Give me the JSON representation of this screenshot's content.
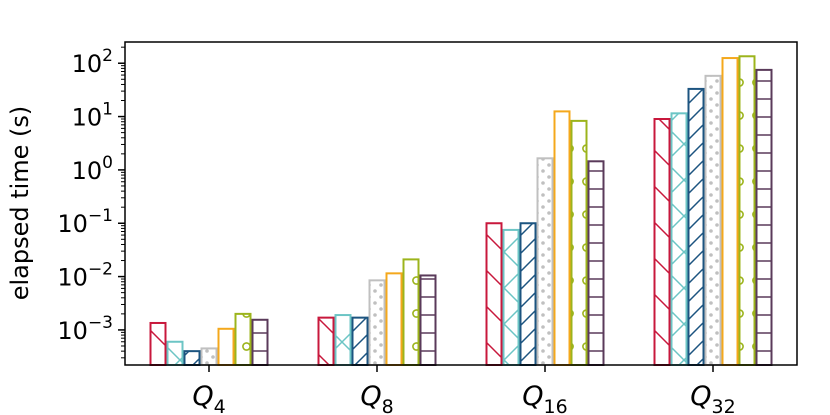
{
  "chart_data": {
    "type": "bar",
    "title": "",
    "xlabel": "",
    "ylabel": "elapsed time (s)",
    "yscale": "log",
    "ylim": [
      0.00022,
      250
    ],
    "yticks": [
      {
        "value": 0.001,
        "base": "10",
        "exp": "−3"
      },
      {
        "value": 0.01,
        "base": "10",
        "exp": "−2"
      },
      {
        "value": 0.1,
        "base": "10",
        "exp": "−1"
      },
      {
        "value": 1,
        "base": "10",
        "exp": "0"
      },
      {
        "value": 10,
        "base": "10",
        "exp": "1"
      },
      {
        "value": 100,
        "base": "10",
        "exp": "2"
      }
    ],
    "categories": [
      {
        "base": "Q",
        "sub": "4"
      },
      {
        "base": "Q",
        "sub": "8"
      },
      {
        "base": "Q",
        "sub": "16"
      },
      {
        "base": "Q",
        "sub": "32"
      }
    ],
    "grid": false,
    "legend": "none",
    "series": [
      {
        "color": "#c8183c",
        "hatch": "diag-back",
        "values": [
          0.00135,
          0.0017,
          0.1,
          9.0
        ]
      },
      {
        "color": "#6cc5c5",
        "hatch": "cross",
        "values": [
          0.0006,
          0.0019,
          0.075,
          11.5
        ]
      },
      {
        "color": "#1c5480",
        "hatch": "diag-fwd",
        "values": [
          0.0004,
          0.0017,
          0.1,
          33.0
        ]
      },
      {
        "color": "#c0c0c0",
        "hatch": "dots",
        "values": [
          0.00045,
          0.0085,
          1.65,
          58.0
        ]
      },
      {
        "color": "#f4a81c",
        "hatch": "none",
        "values": [
          0.00105,
          0.0115,
          12.5,
          125.0
        ]
      },
      {
        "color": "#9cb41c",
        "hatch": "circles",
        "values": [
          0.002,
          0.021,
          8.3,
          135.0
        ]
      },
      {
        "color": "#5a3a5a",
        "hatch": "horizontal",
        "values": [
          0.00155,
          0.0105,
          1.45,
          75.0
        ]
      }
    ]
  }
}
